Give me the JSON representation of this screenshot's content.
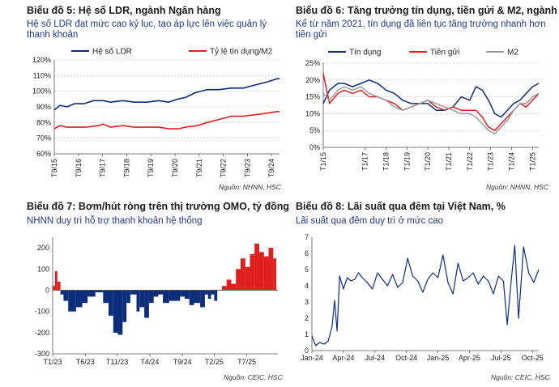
{
  "colors": {
    "blue": "#0d2d7a",
    "red": "#e02020",
    "gray": "#9a9a9a",
    "subtitle": "#1f3a8a"
  },
  "charts": {
    "c5": {
      "title": "Biểu đồ 5: Hệ số LDR, ngành Ngân hàng",
      "subtitle": "Hệ số LDR đạt mức cao kỷ lục, tạo áp lực lên việc quản lý thanh khoản",
      "source": "Nguồn: NHNN, HSC"
    },
    "c6": {
      "title": "Biểu đồ 6: Tăng trưởng tín dụng, tiền gửi & M2, ngành NH",
      "subtitle": "Kể từ năm 2021, tín dụng đã liên tục tăng trưởng nhanh hơn tiền gửi",
      "source": "Nguồn: NHNN, HSC"
    },
    "c7": {
      "title": "Biểu đồ 7: Bơm/hút ròng trên thị trường OMO, tỷ đồng",
      "subtitle": "NHNN duy trì hỗ trợ thanh khoản hệ thống",
      "source": "Nguồn: CEIC, HSC"
    },
    "c8": {
      "title": "Biểu đồ 8: Lãi suất qua đêm tại Việt Nam, %",
      "subtitle": "Lãi suất qua đêm duy trì ở mức cao",
      "source": "Nguồn: CEIC, HSC"
    }
  },
  "chart_data": [
    {
      "id": "c5",
      "type": "line",
      "title": "Biểu đồ 5: Hệ số LDR, ngành Ngân hàng",
      "ylim": [
        60,
        120
      ],
      "yticks": [
        "60%",
        "70%",
        "80%",
        "90%",
        "100%",
        "110%",
        "120%"
      ],
      "xlim": [
        2015.67,
        2025.0
      ],
      "legend": "top",
      "xticks": [
        {
          "x": 2015.67,
          "label": "T9/15"
        },
        {
          "x": 2016.67,
          "label": "T9/16"
        },
        {
          "x": 2017.67,
          "label": "T9/17"
        },
        {
          "x": 2018.67,
          "label": "T9/18"
        },
        {
          "x": 2019.67,
          "label": "T9/19"
        },
        {
          "x": 2020.67,
          "label": "T9/20"
        },
        {
          "x": 2021.67,
          "label": "T9/21"
        },
        {
          "x": 2022.67,
          "label": "T9/22"
        },
        {
          "x": 2023.67,
          "label": "T9/23"
        },
        {
          "x": 2024.67,
          "label": "T9/24"
        }
      ],
      "series": [
        {
          "name": "Hệ số LDR",
          "color": "blue",
          "x": [
            2015.67,
            2015.9,
            2016.2,
            2016.5,
            2016.9,
            2017.3,
            2017.7,
            2018.0,
            2018.5,
            2019.0,
            2019.5,
            2020.0,
            2020.4,
            2020.8,
            2021.1,
            2021.5,
            2022.0,
            2022.5,
            2023.0,
            2023.5,
            2024.0,
            2024.5,
            2024.9,
            2025.0
          ],
          "y": [
            88,
            91,
            90,
            92,
            92,
            94,
            94,
            93,
            94,
            93,
            93,
            94,
            93,
            95,
            96,
            99,
            101,
            101,
            102,
            102,
            104,
            106,
            108,
            108
          ]
        },
        {
          "name": "Tỷ lệ tín dụng/M2",
          "color": "red",
          "x": [
            2015.67,
            2015.9,
            2016.2,
            2016.6,
            2017.0,
            2017.5,
            2017.7,
            2018.0,
            2018.5,
            2019.0,
            2019.5,
            2020.0,
            2020.4,
            2020.8,
            2021.1,
            2021.6,
            2022.0,
            2022.5,
            2023.0,
            2023.5,
            2024.0,
            2024.5,
            2024.9,
            2025.0
          ],
          "y": [
            76,
            78,
            77,
            77,
            77,
            78,
            79,
            77,
            78,
            77,
            77,
            77,
            76,
            76,
            77,
            78,
            80,
            82,
            84,
            84,
            85,
            86,
            87,
            87
          ]
        }
      ]
    },
    {
      "id": "c6",
      "type": "line",
      "title": "Biểu đồ 6: Tăng trưởng tín dụng, tiền gửi & M2, ngành NH",
      "ylim": [
        0,
        25
      ],
      "yticks": [
        "0%",
        "5%",
        "10%",
        "15%",
        "20%",
        "25%"
      ],
      "xlim": [
        2015.0,
        2025.3
      ],
      "legend": "top",
      "xticks": [
        {
          "x": 2015,
          "label": "T1/15"
        },
        {
          "x": 2017,
          "label": "T1/17"
        },
        {
          "x": 2018,
          "label": "T1/18"
        },
        {
          "x": 2019,
          "label": "T1/19"
        },
        {
          "x": 2020,
          "label": "T1/20"
        },
        {
          "x": 2021,
          "label": "T1/21"
        },
        {
          "x": 2022,
          "label": "T1/22"
        },
        {
          "x": 2023,
          "label": "T1/23"
        },
        {
          "x": 2024,
          "label": "T1/24"
        },
        {
          "x": 2025,
          "label": "T1/25"
        }
      ],
      "series": [
        {
          "name": "Tín dụng",
          "color": "blue",
          "x": [
            2015.0,
            2015.3,
            2015.7,
            2016.0,
            2016.4,
            2016.8,
            2017.2,
            2017.6,
            2018.0,
            2018.4,
            2018.8,
            2019.2,
            2019.6,
            2020.0,
            2020.4,
            2020.8,
            2021.2,
            2021.6,
            2022.0,
            2022.3,
            2022.6,
            2022.9,
            2023.2,
            2023.5,
            2023.8,
            2024.1,
            2024.4,
            2024.7,
            2025.0,
            2025.3
          ],
          "y": [
            13,
            17,
            19,
            19,
            18,
            19,
            20,
            19,
            17,
            16,
            14,
            13,
            13,
            13,
            11,
            11,
            12,
            15,
            14,
            18,
            17,
            14,
            10,
            9,
            11,
            13,
            14,
            16,
            18,
            19
          ]
        },
        {
          "name": "Tiền gửi",
          "color": "red",
          "x": [
            2015.0,
            2015.3,
            2015.7,
            2016.0,
            2016.4,
            2016.8,
            2017.2,
            2017.6,
            2018.0,
            2018.4,
            2018.8,
            2019.2,
            2019.6,
            2020.0,
            2020.4,
            2020.8,
            2021.2,
            2021.6,
            2022.0,
            2022.3,
            2022.6,
            2022.9,
            2023.2,
            2023.5,
            2023.8,
            2024.1,
            2024.4,
            2024.7,
            2025.0,
            2025.3
          ],
          "y": [
            22,
            13,
            16,
            17,
            16,
            17,
            15,
            15,
            14,
            13,
            11,
            12,
            13,
            14,
            12,
            11,
            12,
            11,
            11,
            11,
            9,
            6,
            5,
            7,
            9,
            11,
            13,
            12,
            14,
            16
          ]
        },
        {
          "name": "M2",
          "color": "gray",
          "x": [
            2015.0,
            2015.3,
            2015.7,
            2016.0,
            2016.4,
            2016.8,
            2017.2,
            2017.6,
            2018.0,
            2018.4,
            2018.8,
            2019.2,
            2019.6,
            2020.0,
            2020.4,
            2020.8,
            2021.2,
            2021.6,
            2022.0,
            2022.3,
            2022.6,
            2022.9,
            2023.2,
            2023.5,
            2023.8,
            2024.1,
            2024.4,
            2024.7,
            2025.0,
            2025.3
          ],
          "y": [
            16,
            14,
            17,
            18,
            17,
            18,
            16,
            15,
            14,
            12,
            11,
            12,
            13,
            14,
            13,
            12,
            11,
            10,
            10,
            9,
            7,
            5,
            4,
            6,
            8,
            11,
            13,
            13,
            15,
            16
          ]
        }
      ]
    },
    {
      "id": "c7",
      "type": "area",
      "title": "Biểu đồ 7: Bơm/hút ròng trên thị trường OMO, tỷ đồng",
      "ylim": [
        -300,
        250
      ],
      "yticks": [
        "-300",
        "-200",
        "-100",
        "0",
        "100",
        "200"
      ],
      "xlim": [
        2023.0,
        2025.9
      ],
      "xticks": [
        {
          "x": 2023.0,
          "label": "T1/23"
        },
        {
          "x": 2023.42,
          "label": "T6/23"
        },
        {
          "x": 2023.83,
          "label": "T11/23"
        },
        {
          "x": 2024.25,
          "label": "T4/24"
        },
        {
          "x": 2024.67,
          "label": "T9/24"
        },
        {
          "x": 2025.08,
          "label": "T2/25"
        },
        {
          "x": 2025.5,
          "label": "T7/25"
        }
      ],
      "x": [
        2023.0,
        2023.03,
        2023.06,
        2023.1,
        2023.14,
        2023.2,
        2023.3,
        2023.38,
        2023.45,
        2023.55,
        2023.65,
        2023.72,
        2023.78,
        2023.84,
        2023.9,
        2023.95,
        2024.0,
        2024.08,
        2024.12,
        2024.18,
        2024.24,
        2024.3,
        2024.36,
        2024.42,
        2024.5,
        2024.58,
        2024.64,
        2024.7,
        2024.76,
        2024.82,
        2024.9,
        2024.96,
        2025.0,
        2025.04,
        2025.08,
        2025.12,
        2025.18,
        2025.24,
        2025.3,
        2025.36,
        2025.42,
        2025.48,
        2025.54,
        2025.6,
        2025.66,
        2025.72,
        2025.78,
        2025.84,
        2025.88
      ],
      "values": [
        20,
        90,
        40,
        -20,
        -50,
        -100,
        -80,
        -60,
        -30,
        -10,
        -60,
        -120,
        -200,
        -210,
        -150,
        -60,
        -20,
        -100,
        -80,
        -130,
        -60,
        -30,
        -20,
        -60,
        -50,
        -50,
        -30,
        -40,
        -70,
        -60,
        -80,
        -20,
        -40,
        -20,
        -50,
        0,
        20,
        50,
        30,
        100,
        150,
        110,
        170,
        220,
        180,
        160,
        200,
        150,
        140
      ]
    },
    {
      "id": "c8",
      "type": "line",
      "title": "Biểu đồ 8: Lãi suất qua đêm tại Việt Nam, %",
      "ylim": [
        0,
        7
      ],
      "yticks": [
        "0",
        "1",
        "2",
        "3",
        "4",
        "5",
        "6",
        "7"
      ],
      "xlim": [
        2024.0,
        2025.8
      ],
      "xticks": [
        {
          "x": 2024.0,
          "label": "Jan-24"
        },
        {
          "x": 2024.25,
          "label": "Apr-24"
        },
        {
          "x": 2024.5,
          "label": "Jul-24"
        },
        {
          "x": 2024.75,
          "label": "Oct-24"
        },
        {
          "x": 2025.0,
          "label": "Jan-25"
        },
        {
          "x": 2025.25,
          "label": "Apr-25"
        },
        {
          "x": 2025.5,
          "label": "Jul-25"
        },
        {
          "x": 2025.75,
          "label": "Oct-25"
        }
      ],
      "series": [
        {
          "name": "",
          "color": "blue",
          "x": [
            2024.0,
            2024.03,
            2024.06,
            2024.1,
            2024.13,
            2024.16,
            2024.18,
            2024.2,
            2024.22,
            2024.25,
            2024.28,
            2024.31,
            2024.34,
            2024.37,
            2024.4,
            2024.44,
            2024.48,
            2024.52,
            2024.56,
            2024.6,
            2024.64,
            2024.68,
            2024.72,
            2024.76,
            2024.8,
            2024.84,
            2024.88,
            2024.92,
            2024.96,
            2025.0,
            2025.04,
            2025.08,
            2025.12,
            2025.16,
            2025.2,
            2025.24,
            2025.28,
            2025.32,
            2025.36,
            2025.4,
            2025.44,
            2025.48,
            2025.52,
            2025.55,
            2025.58,
            2025.61,
            2025.64,
            2025.68,
            2025.72,
            2025.76,
            2025.8
          ],
          "y": [
            0.9,
            0.3,
            0.5,
            0.4,
            0.6,
            1.5,
            3.1,
            1.2,
            4.6,
            3.8,
            4.5,
            4.3,
            4.4,
            4.8,
            4.5,
            4.2,
            3.8,
            4.8,
            4.4,
            4.0,
            4.7,
            3.9,
            4.2,
            5.7,
            4.6,
            4.3,
            3.6,
            4.4,
            4.8,
            4.5,
            5.9,
            4.2,
            3.5,
            5.4,
            4.3,
            4.5,
            4.8,
            4.1,
            4.6,
            4.3,
            3.5,
            4.6,
            4.3,
            1.6,
            4.2,
            6.5,
            2.0,
            6.4,
            4.8,
            4.2,
            5.0
          ]
        }
      ]
    }
  ]
}
